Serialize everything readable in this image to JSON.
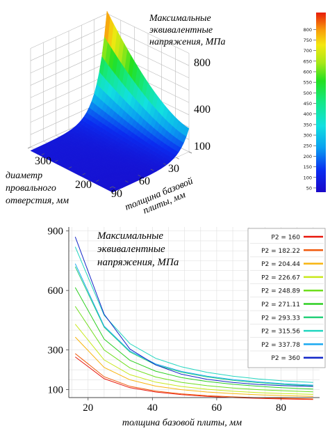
{
  "chart_data": [
    {
      "type": "surface3d",
      "title": "Максимальные эквивалентные напряжения, МПа",
      "title_lines": [
        "Максимальные",
        "эквивалентные",
        "напряжения, МПа"
      ],
      "xlabel_lines": [
        "толщина базовой",
        "плиты, мм"
      ],
      "ylabel_lines": [
        "диаметр",
        "провального",
        "отверстия, мм"
      ],
      "x_ticks": [
        "30",
        "60",
        "90"
      ],
      "y_ticks": [
        "300",
        "200"
      ],
      "z_ticks": [
        "800",
        "400",
        "100"
      ],
      "xlim": [
        15,
        90
      ],
      "ylim": [
        160,
        360
      ],
      "zlim": [
        50,
        880
      ],
      "colorbar": {
        "ticks": [
          "800",
          "750",
          "700",
          "650",
          "600",
          "550",
          "500",
          "450",
          "400",
          "350",
          "300",
          "250",
          "200",
          "150",
          "100",
          "50"
        ],
        "range": [
          30,
          880
        ]
      }
    },
    {
      "type": "line",
      "title_lines": [
        "Максимальные",
        "эквивалентные",
        "напряжения, МПа"
      ],
      "xlabel": "толщина базовой плиты, мм",
      "ylabel": "",
      "xlim": [
        14,
        92
      ],
      "ylim": [
        60,
        920
      ],
      "x_ticks": [
        "20",
        "40",
        "60",
        "80"
      ],
      "y_ticks": [
        "900",
        "600",
        "300",
        "100"
      ],
      "x": [
        16,
        25,
        33,
        41,
        49,
        57,
        65,
        73,
        81,
        90
      ],
      "series": [
        {
          "name": "P2 = 160",
          "color": "#e8170c",
          "values": [
            265,
            155,
            110,
            88,
            75,
            66,
            60,
            56,
            53,
            50
          ]
        },
        {
          "name": "P2 = 182.22",
          "color": "#f05a0c",
          "values": [
            282,
            165,
            117,
            93,
            79,
            70,
            64,
            59,
            56,
            53
          ]
        },
        {
          "name": "P2 = 204.44",
          "color": "#f8b40e",
          "values": [
            365,
            212,
            150,
            118,
            100,
            88,
            80,
            74,
            70,
            66
          ]
        },
        {
          "name": "P2 = 226.67",
          "color": "#c8e81a",
          "values": [
            430,
            250,
            176,
            138,
            116,
            102,
            92,
            85,
            80,
            76
          ]
        },
        {
          "name": "P2 = 248.89",
          "color": "#6ede1c",
          "values": [
            520,
            300,
            210,
            164,
            137,
            120,
            108,
            100,
            94,
            89
          ]
        },
        {
          "name": "P2 = 271.11",
          "color": "#2dcf22",
          "values": [
            615,
            355,
            248,
            193,
            161,
            141,
            127,
            117,
            109,
            103
          ]
        },
        {
          "name": "P2 = 293.33",
          "color": "#26d07a",
          "values": [
            720,
            415,
            290,
            225,
            188,
            164,
            147,
            135,
            126,
            119
          ]
        },
        {
          "name": "P2 = 315.56",
          "color": "#22d6c0",
          "values": [
            820,
            475,
            332,
            258,
            215,
            187,
            168,
            154,
            144,
            136
          ]
        },
        {
          "name": "P2 = 337.78",
          "color": "#1aa8f0",
          "values": [
            735,
            420,
            295,
            230,
            192,
            168,
            151,
            139,
            130,
            123
          ]
        },
        {
          "name": "P2 = 360",
          "color": "#1226c8",
          "values": [
            870,
            480,
            305,
            225,
            178,
            152,
            136,
            126,
            120,
            116
          ]
        }
      ]
    }
  ]
}
